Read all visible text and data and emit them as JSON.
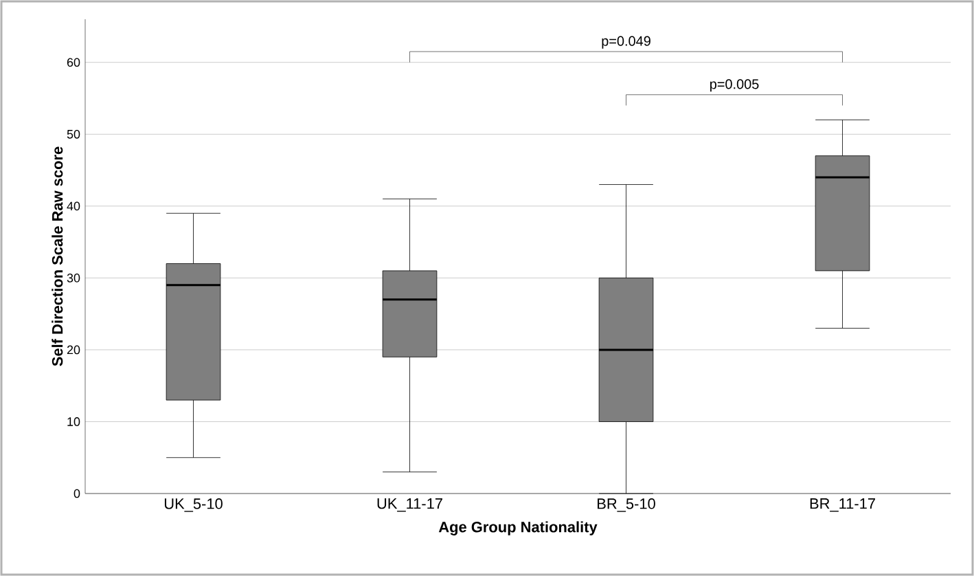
{
  "chart_data": {
    "type": "box",
    "xlabel": "Age Group Nationality",
    "ylabel": "Self Direction Scale Raw score",
    "categories": [
      "UK_5-10",
      "UK_11-17",
      "BR_5-10",
      "BR_11-17"
    ],
    "boxes": [
      {
        "low": 5,
        "q1": 13,
        "median": 29,
        "q3": 32,
        "high": 39
      },
      {
        "low": 3,
        "q1": 19,
        "median": 27,
        "q3": 31,
        "high": 41
      },
      {
        "low": 0,
        "q1": 10,
        "median": 20,
        "q3": 30,
        "high": 43
      },
      {
        "low": 23,
        "q1": 31,
        "median": 44,
        "q3": 47,
        "high": 52
      }
    ],
    "color": "#7f7f7f",
    "ylim": [
      0,
      66
    ],
    "yticks": [
      0,
      10,
      20,
      30,
      40,
      50,
      60
    ],
    "grid": "y",
    "annotations": [
      "p=0.049",
      "p=0.005"
    ]
  }
}
